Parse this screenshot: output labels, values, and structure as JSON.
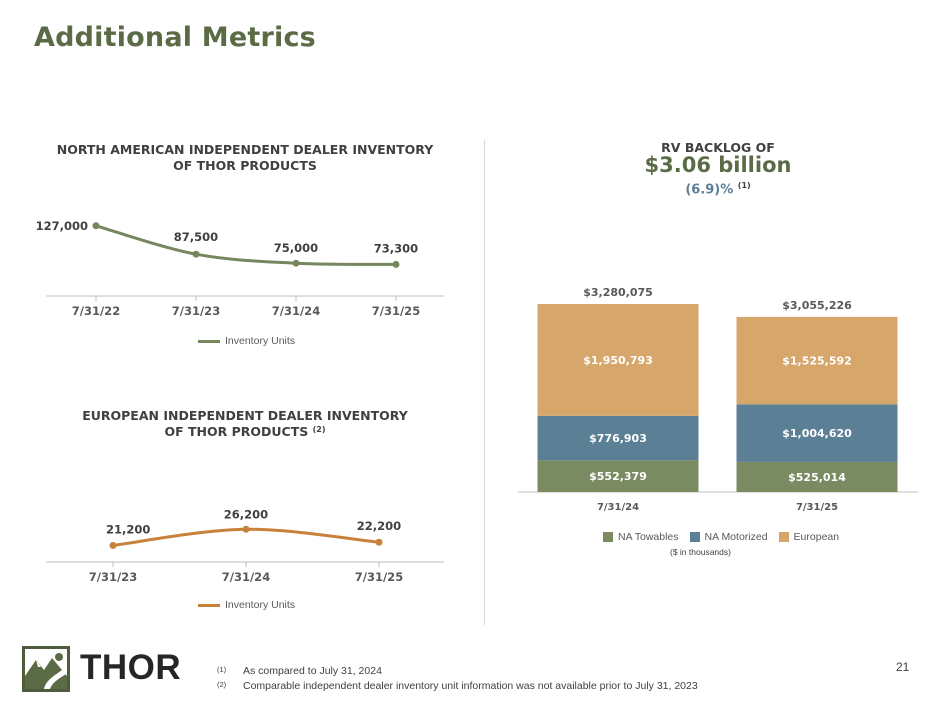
{
  "title": "Additional Metrics",
  "page_number": "21",
  "logo": {
    "text": "THOR"
  },
  "colors": {
    "title": "#5b6b45",
    "na_line": "#76875e",
    "eu_line": "#c8813b",
    "na_towables": "#7a8a61",
    "na_motorized": "#5b7f95",
    "european": "#d6a66b",
    "backlog_change": "#5b7f95"
  },
  "na_chart": {
    "title_line1": "NORTH AMERICAN INDEPENDENT DEALER INVENTORY",
    "title_line2": "OF THOR PRODUCTS",
    "legend": "Inventory Units"
  },
  "eu_chart": {
    "title_line1": "EUROPEAN INDEPENDENT DEALER INVENTORY",
    "title_line2": "OF THOR PRODUCTS",
    "footnote_ref": "(2)",
    "legend": "Inventory Units"
  },
  "backlog": {
    "heading": "RV BACKLOG OF",
    "amount": "$3.06 billion",
    "change": "(6.9)%",
    "footnote_ref": "(1)",
    "units_note": "($ in thousands)",
    "legend": [
      "NA Towables",
      "NA Motorized",
      "European"
    ]
  },
  "chart_data": [
    {
      "type": "line",
      "title": "NORTH AMERICAN INDEPENDENT DEALER INVENTORY OF THOR PRODUCTS",
      "categories": [
        "7/31/22",
        "7/31/23",
        "7/31/24",
        "7/31/25"
      ],
      "series": [
        {
          "name": "Inventory Units",
          "values": [
            127000,
            87500,
            75000,
            73300
          ]
        }
      ],
      "labels": [
        "127,000",
        "87,500",
        "75,000",
        "73,300"
      ],
      "ylim": [
        60000,
        135000
      ]
    },
    {
      "type": "line",
      "title": "EUROPEAN INDEPENDENT DEALER INVENTORY OF THOR PRODUCTS",
      "categories": [
        "7/31/23",
        "7/31/24",
        "7/31/25"
      ],
      "series": [
        {
          "name": "Inventory Units",
          "values": [
            21200,
            26200,
            22200
          ]
        }
      ],
      "labels": [
        "21,200",
        "26,200",
        "22,200"
      ],
      "ylim": [
        0,
        60000
      ]
    },
    {
      "type": "bar",
      "stacked": true,
      "title": "RV BACKLOG OF $3.06 billion",
      "categories": [
        "7/31/24",
        "7/31/25"
      ],
      "totals": [
        3280075,
        3055226
      ],
      "total_labels": [
        "$3,280,075",
        "$3,055,226"
      ],
      "series": [
        {
          "name": "NA Towables",
          "values": [
            552379,
            525014
          ],
          "labels": [
            "$552,379",
            "$525,014"
          ]
        },
        {
          "name": "NA Motorized",
          "values": [
            776903,
            1004620
          ],
          "labels": [
            "$776,903",
            "$1,004,620"
          ]
        },
        {
          "name": "European",
          "values": [
            1950793,
            1525592
          ],
          "labels": [
            "$1,950,793",
            "$1,525,592"
          ]
        }
      ],
      "ylim": [
        0,
        3400000
      ]
    }
  ],
  "footnotes": [
    {
      "mark": "(1)",
      "text": "As compared to July 31, 2024"
    },
    {
      "mark": "(2)",
      "text": "Comparable independent dealer inventory unit information was not available prior to July 31, 2023"
    }
  ]
}
